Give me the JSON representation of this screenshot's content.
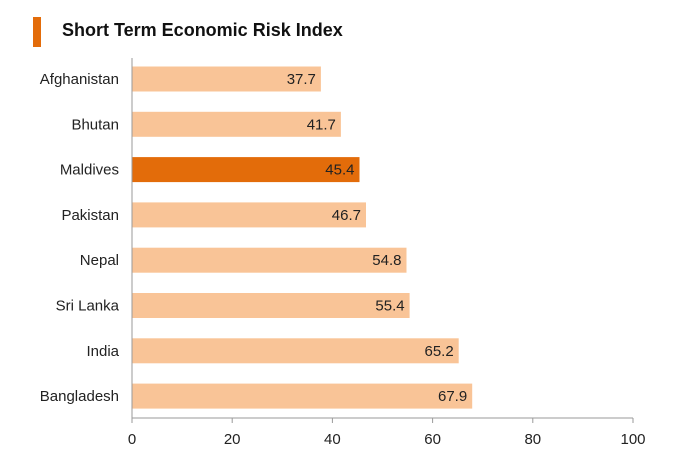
{
  "colors": {
    "accent": "#e36c0a",
    "bar": "#f9c497",
    "highlight": "#e36c0a",
    "axis": "#9a9a9a"
  },
  "chart_data": {
    "type": "bar",
    "orientation": "horizontal",
    "title": "Short Term Economic Risk Index",
    "categories": [
      "Afghanistan",
      "Bhutan",
      "Maldives",
      "Pakistan",
      "Nepal",
      "Sri Lanka",
      "India",
      "Bangladesh"
    ],
    "values": [
      37.7,
      41.7,
      45.4,
      46.7,
      54.8,
      55.4,
      65.2,
      67.9
    ],
    "value_labels": [
      "37.7",
      "41.7",
      "45.4",
      "46.7",
      "54.8",
      "55.4",
      "65.2",
      "67.9"
    ],
    "highlight_category": "Maldives",
    "xlim": [
      0,
      100
    ],
    "xticks": [
      0,
      20,
      40,
      60,
      80,
      100
    ],
    "xtick_labels": [
      "0",
      "20",
      "40",
      "60",
      "80",
      "100"
    ],
    "xlabel": "",
    "ylabel": "",
    "grid": false,
    "legend": "none"
  }
}
